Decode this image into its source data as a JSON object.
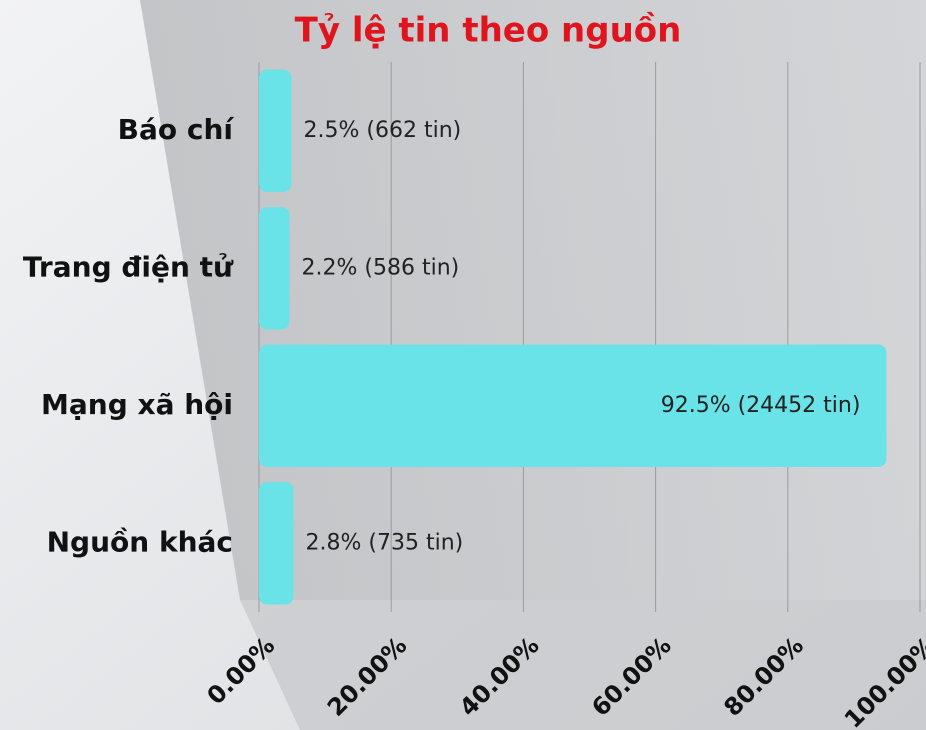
{
  "chart_data": {
    "type": "barh",
    "title": "Tỷ lệ tin theo nguồn",
    "categories": [
      "Báo chí",
      "Trang điện tử",
      "Mạng xã hội",
      "Nguồn khác"
    ],
    "values": [
      2.5,
      2.2,
      92.5,
      2.8
    ],
    "value_labels": [
      "2.5% (662 tin)",
      "2.2% (586 tin)",
      "92.5% (24452 tin)",
      "2.8% (735 tin)"
    ],
    "color": "#6ae3e8",
    "xlim": [
      0,
      100
    ],
    "xticks": [
      {
        "value": 0,
        "label": "0.00%"
      },
      {
        "value": 20,
        "label": "20.00%"
      },
      {
        "value": 40,
        "label": "40.00%"
      },
      {
        "value": 60,
        "label": "60.00%"
      },
      {
        "value": 80,
        "label": "80.00%"
      },
      {
        "value": 100,
        "label": "100.00%"
      }
    ],
    "grid": true
  }
}
